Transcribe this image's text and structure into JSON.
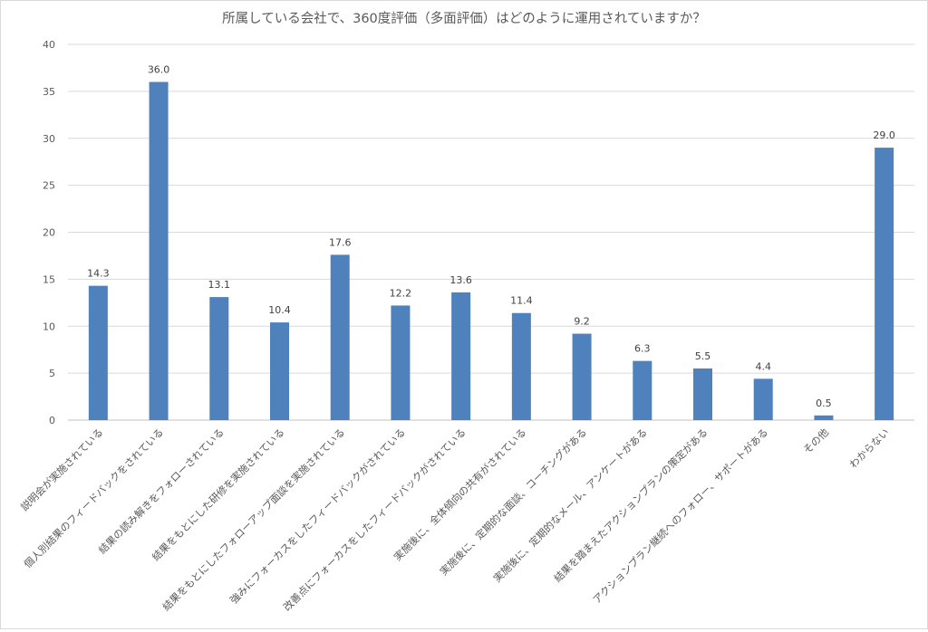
{
  "chart_data": {
    "type": "bar",
    "title": "所属している会社で、360度評価（多面評価）はどのように運用されていますか？",
    "xlabel": "",
    "ylabel": "",
    "ylim": [
      0,
      40
    ],
    "yticks": [
      0,
      5,
      10,
      15,
      20,
      25,
      30,
      35,
      40
    ],
    "grid": true,
    "legend": "none",
    "bar_color": "#4f81bd",
    "categories": [
      "説明会が実施されている",
      "個人別結果のフィードバックをされている",
      "結果の読み解きをフォローされている",
      "結果をもとにした研修を実施されている",
      "結果をもとにしたフォローアップ面談を実施されている",
      "強みにフォーカスをしたフィードバックがされている",
      "改善点にフォーカスをしたフィードバックがされている",
      "実施後に、全体傾向の共有がされている",
      "実施後に、定期的な面談、コーチングがある",
      "実施後に、定期的なメール、アンケートがある",
      "結果を踏まえたアクションプランの策定がある",
      "アクションプラン継続へのフォロー、サポートがある",
      "その他",
      "わからない"
    ],
    "values": [
      14.3,
      36.0,
      13.1,
      10.4,
      17.6,
      12.2,
      13.6,
      11.4,
      9.2,
      6.3,
      5.5,
      4.4,
      0.5,
      29.0
    ],
    "value_labels": [
      "14.3",
      "36.0",
      "13.1",
      "10.4",
      "17.6",
      "12.2",
      "13.6",
      "11.4",
      "9.2",
      "6.3",
      "5.5",
      "4.4",
      "0.5",
      "29.0"
    ]
  }
}
